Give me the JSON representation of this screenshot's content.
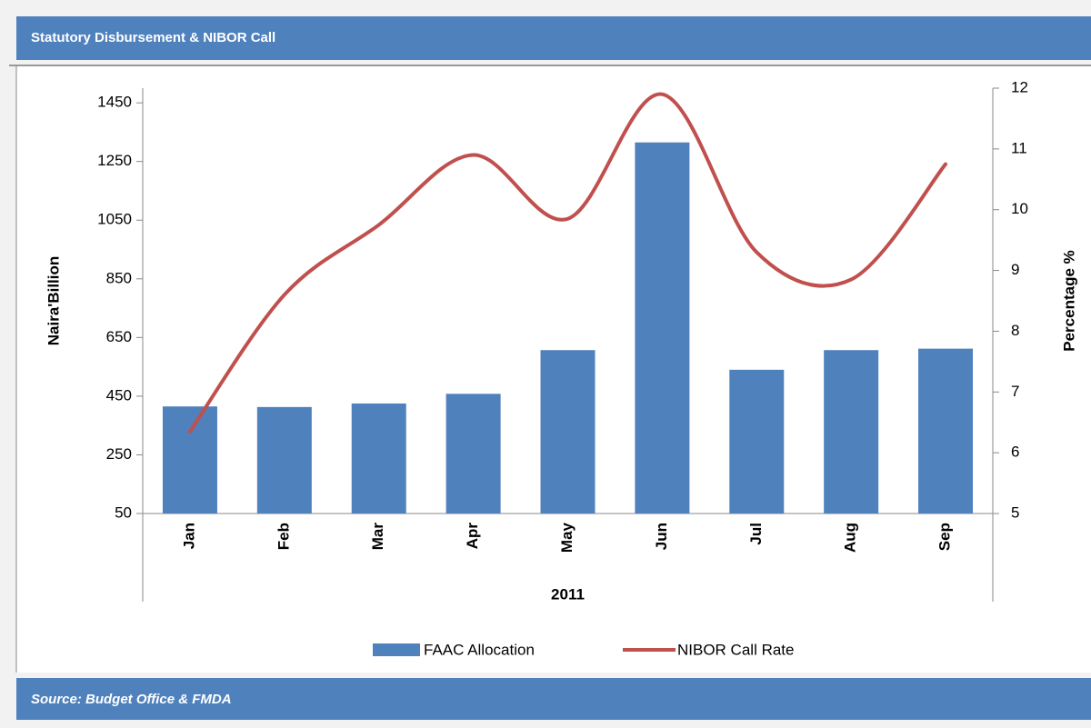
{
  "header": {
    "title": "Statutory Disbursement & NIBOR Call"
  },
  "footer": {
    "source": "Source: Budget Office & FMDA"
  },
  "chart_data": {
    "type": "bar-line",
    "x_label": "2011",
    "y_label": "Naira'Billion",
    "y2_label": "Percentage %",
    "categories": [
      "Jan",
      "Feb",
      "Mar",
      "Apr",
      "May",
      "Jun",
      "Jul",
      "Aug",
      "Sep"
    ],
    "series": [
      {
        "name": "FAAC Allocation",
        "type": "bar",
        "color": "#4f81bd",
        "values": [
          415,
          413,
          425,
          458,
          607,
          1315,
          540,
          607,
          612
        ]
      },
      {
        "name": "NIBOR Call Rate",
        "type": "line",
        "axis": "y2",
        "color": "#c0504d",
        "values": [
          6.35,
          8.6,
          9.75,
          10.9,
          9.85,
          11.9,
          9.3,
          8.85,
          10.75
        ]
      }
    ],
    "ylim": [
      50,
      1500
    ],
    "yticks": [
      50,
      250,
      450,
      650,
      850,
      1050,
      1250,
      1450
    ],
    "y2lim": [
      5,
      12
    ],
    "y2ticks": [
      5,
      6,
      7,
      8,
      9,
      10,
      11,
      12
    ],
    "legend": "bottom"
  }
}
